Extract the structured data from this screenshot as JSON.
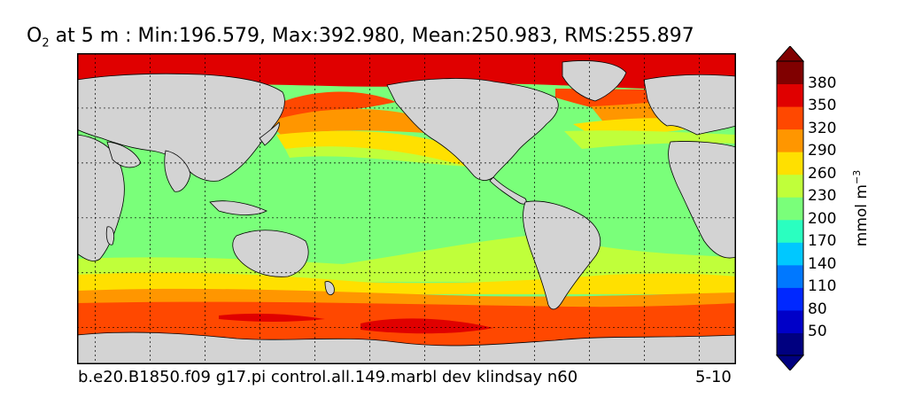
{
  "title": {
    "species": "O",
    "subscript": "2",
    "text": " at 5 m : Min:196.579, Max:392.980, Mean:250.983, RMS:255.897"
  },
  "footer": {
    "case": "b.e20.B1850.f09 g17.pi control.all.149.marbl dev klindsay n60",
    "years": "5-10"
  },
  "colorbar": {
    "units_main": "mmol m",
    "units_exp": "−3",
    "tick_labels": [
      "380",
      "350",
      "320",
      "290",
      "260",
      "230",
      "200",
      "170",
      "140",
      "110",
      "80",
      "50"
    ],
    "levels": [
      50,
      80,
      110,
      140,
      170,
      200,
      230,
      260,
      290,
      320,
      350,
      380
    ],
    "colors": [
      "#000080",
      "#0000c8",
      "#0028ff",
      "#0078ff",
      "#00c8ff",
      "#2affc0",
      "#7aff7a",
      "#c0ff3a",
      "#ffe000",
      "#ff9600",
      "#ff4800",
      "#e00000",
      "#800000"
    ],
    "under_color": "#000080",
    "over_color": "#800000"
  },
  "map": {
    "land_color": "#d3d3d3",
    "projection": "cylindrical",
    "lon_range": [
      20,
      380
    ],
    "lat_range": [
      -80,
      90
    ],
    "gridlines": "dashed, every 30°"
  },
  "chart_data": {
    "type": "heatmap",
    "variable": "O2",
    "depth": "5 m",
    "stats": {
      "min": 196.579,
      "max": 392.98,
      "mean": 250.983,
      "rms": 255.897
    },
    "units": "mmol m^-3",
    "contour_levels": [
      50,
      80,
      110,
      140,
      170,
      200,
      230,
      260,
      290,
      320,
      350,
      380
    ],
    "zonal_bands": [
      {
        "lat_from": 70,
        "lat_to": 90,
        "value_range": [
          350,
          380
        ]
      },
      {
        "lat_from": 45,
        "lat_to": 70,
        "value_range": [
          290,
          350
        ]
      },
      {
        "lat_from": 35,
        "lat_to": 45,
        "value_range": [
          230,
          290
        ]
      },
      {
        "lat_from": -30,
        "lat_to": 35,
        "value_range": [
          200,
          230
        ]
      },
      {
        "lat_from": -45,
        "lat_to": -30,
        "value_range": [
          230,
          290
        ]
      },
      {
        "lat_from": -60,
        "lat_to": -45,
        "value_range": [
          290,
          350
        ]
      },
      {
        "lat_from": -80,
        "lat_to": -60,
        "value_range": [
          320,
          380
        ]
      }
    ]
  }
}
